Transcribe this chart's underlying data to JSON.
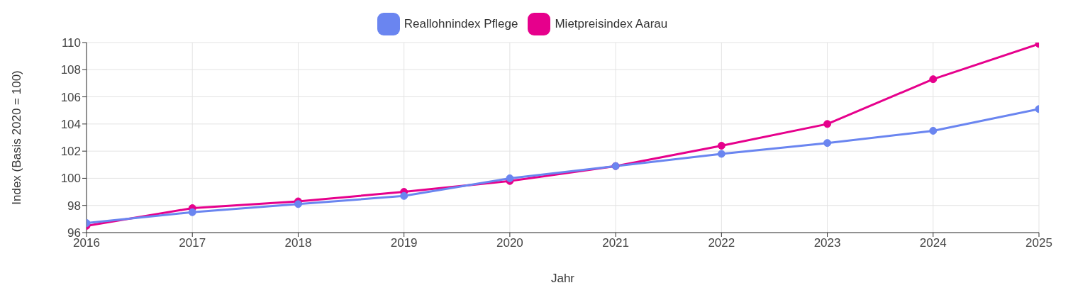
{
  "chart_data": {
    "type": "line",
    "xlabel": "Jahr",
    "ylabel": "Index (Basis 2020 = 100)",
    "x": [
      2016,
      2017,
      2018,
      2019,
      2020,
      2021,
      2022,
      2023,
      2024,
      2025
    ],
    "series": [
      {
        "name": "Reallohnindex Pflege",
        "color": "#6a85f0",
        "values": [
          96.7,
          97.5,
          98.1,
          98.7,
          100.0,
          100.9,
          101.8,
          102.6,
          103.5,
          105.1
        ]
      },
      {
        "name": "Mietpreisindex Aarau",
        "color": "#e6008c",
        "values": [
          96.5,
          97.8,
          98.3,
          99.0,
          99.8,
          100.9,
          102.4,
          104.0,
          107.3,
          109.9
        ]
      }
    ],
    "xlim": [
      2016,
      2025
    ],
    "xticks": [
      2016,
      2017,
      2018,
      2019,
      2020,
      2021,
      2022,
      2023,
      2024,
      2025
    ],
    "ylim": [
      96,
      110
    ],
    "yticks": [
      96,
      98,
      100,
      102,
      104,
      106,
      108,
      110
    ],
    "grid": true,
    "legend": "top",
    "marker": "circle",
    "line_style": "solid"
  }
}
